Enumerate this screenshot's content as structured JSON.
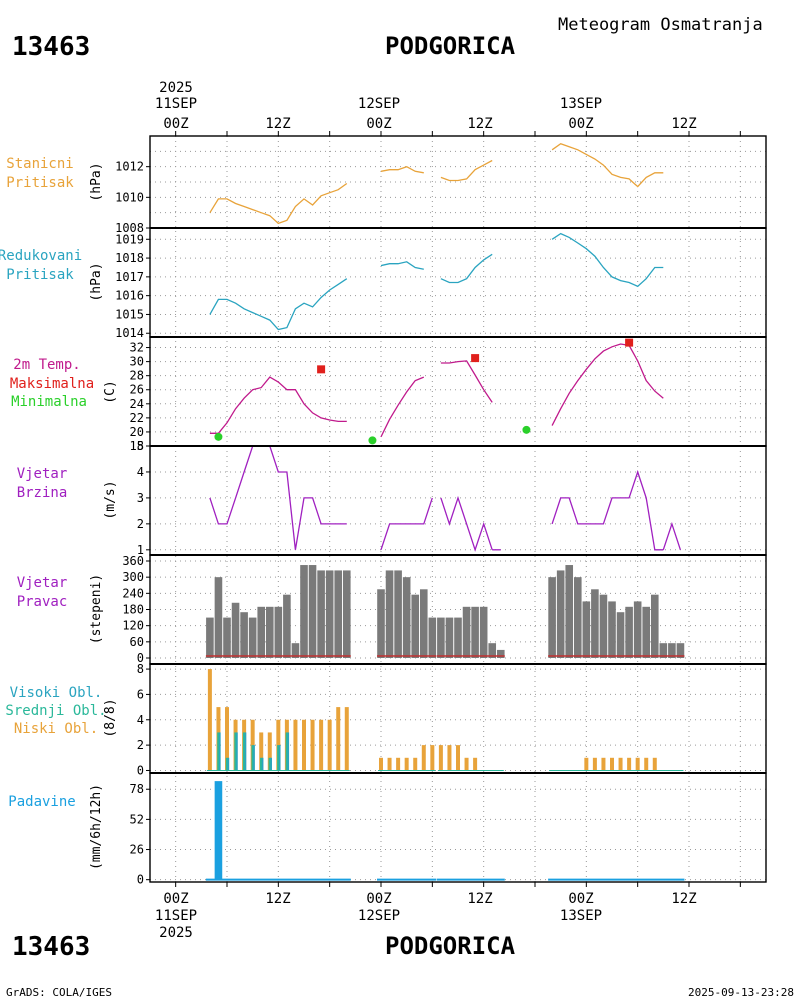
{
  "header": {
    "station_id": "13463",
    "station_name": "PODGORICA",
    "title": "Meteogram Osmatranja"
  },
  "footer": {
    "credit": "GrADS: COLA/IGES",
    "timestamp": "2025-09-13-23:28"
  },
  "time_axis": {
    "year": "2025",
    "tick_labels": [
      "00Z",
      "12Z",
      "00Z",
      "12Z",
      "00Z",
      "12Z"
    ],
    "date_labels": [
      "11SEP",
      "12SEP",
      "13SEP"
    ]
  },
  "colors": {
    "orange": "#e8a33a",
    "cyan": "#2aa4c0",
    "magenta": "#c01a8c",
    "red": "#e0201c",
    "green": "#2ad02a",
    "purple": "#a020c0",
    "gray": "#7a7a7a",
    "teal": "#2ab89a",
    "blue": "#1aa0e0"
  },
  "panels": [
    {
      "id": "station_pressure",
      "labels": [
        "Stanicni",
        "Pritisak"
      ],
      "unit": "(hPa)"
    },
    {
      "id": "reduced_pressure",
      "labels": [
        "Redukovani",
        "Pritisak"
      ],
      "unit": "(hPa)"
    },
    {
      "id": "temperature",
      "labels": [
        "2m Temp.",
        "Maksimalna",
        "Minimalna"
      ],
      "unit": "(C)"
    },
    {
      "id": "wind_speed",
      "labels": [
        "Vjetar",
        "Brzina"
      ],
      "unit": "(m/s)"
    },
    {
      "id": "wind_direction",
      "labels": [
        "Vjetar",
        "Pravac"
      ],
      "unit": "(stepeni)"
    },
    {
      "id": "clouds",
      "labels": [
        "Visoki Obl.",
        "Srednji Obl.",
        "Niski Obl."
      ],
      "unit": "(8/8)"
    },
    {
      "id": "precipitation",
      "labels": [
        "Padavine"
      ],
      "unit": "(mm/6h/12h)"
    }
  ],
  "chart_data": {
    "type": "line",
    "x_unit": "hours since 2025-09-11 00Z",
    "xlim": [
      -3,
      69
    ],
    "station_pressure": {
      "ylim": [
        1008,
        1014
      ],
      "yticks": [
        1008,
        1010,
        1012
      ],
      "y_gridlines": [
        1009,
        1011,
        1013
      ],
      "segments": [
        {
          "x": [
            4,
            5,
            6,
            7,
            8,
            9,
            10,
            11,
            12,
            13,
            14,
            15,
            16,
            17,
            18,
            19,
            20
          ],
          "y": [
            1009.0,
            1009.9,
            1009.9,
            1009.6,
            1009.4,
            1009.2,
            1009.0,
            1008.8,
            1008.3,
            1008.5,
            1009.4,
            1009.9,
            1009.5,
            1010.1,
            1010.3,
            1010.5,
            1010.9
          ]
        },
        {
          "x": [
            24,
            25,
            26,
            27,
            28,
            29
          ],
          "y": [
            1011.7,
            1011.8,
            1011.8,
            1012.0,
            1011.7,
            1011.6
          ]
        },
        {
          "x": [
            31,
            32,
            33,
            34,
            35,
            36,
            37
          ],
          "y": [
            1011.3,
            1011.1,
            1011.1,
            1011.2,
            1011.8,
            1012.1,
            1012.4
          ]
        },
        {
          "x": [
            44,
            45,
            46,
            47,
            48,
            49,
            50,
            51,
            52,
            53,
            54,
            55,
            56,
            57
          ],
          "y": [
            1013.1,
            1013.5,
            1013.3,
            1013.1,
            1012.8,
            1012.5,
            1012.1,
            1011.5,
            1011.3,
            1011.2,
            1010.7,
            1011.3,
            1011.6,
            1011.6
          ]
        }
      ]
    },
    "reduced_pressure": {
      "ylim": [
        1013.8,
        1019.6
      ],
      "yticks": [
        1014,
        1015,
        1016,
        1017,
        1018,
        1019
      ],
      "segments": [
        {
          "x": [
            4,
            5,
            6,
            7,
            8,
            9,
            10,
            11,
            12,
            13,
            14,
            15,
            16,
            17,
            18,
            19,
            20
          ],
          "y": [
            1015.0,
            1015.8,
            1015.8,
            1015.6,
            1015.3,
            1015.1,
            1014.9,
            1014.7,
            1014.2,
            1014.3,
            1015.3,
            1015.6,
            1015.4,
            1015.9,
            1016.3,
            1016.6,
            1016.9
          ]
        },
        {
          "x": [
            24,
            25,
            26,
            27,
            28,
            29
          ],
          "y": [
            1017.6,
            1017.7,
            1017.7,
            1017.8,
            1017.5,
            1017.4
          ]
        },
        {
          "x": [
            31,
            32,
            33,
            34,
            35,
            36,
            37
          ],
          "y": [
            1016.9,
            1016.7,
            1016.7,
            1016.9,
            1017.5,
            1017.9,
            1018.2
          ]
        },
        {
          "x": [
            44,
            45,
            46,
            47,
            48,
            49,
            50,
            51,
            52,
            53,
            54,
            55,
            56,
            57
          ],
          "y": [
            1019.0,
            1019.3,
            1019.1,
            1018.8,
            1018.5,
            1018.1,
            1017.5,
            1017.0,
            1016.8,
            1016.7,
            1016.5,
            1016.9,
            1017.5,
            1017.5
          ]
        }
      ]
    },
    "temperature": {
      "ylim": [
        18,
        33.5
      ],
      "yticks": [
        18,
        20,
        22,
        24,
        26,
        28,
        30,
        32
      ],
      "segments": [
        {
          "x": [
            4,
            5,
            6,
            7,
            8,
            9,
            10,
            11,
            12,
            13,
            14,
            15,
            16,
            17,
            18,
            19,
            20
          ],
          "y": [
            19.8,
            19.8,
            21.3,
            23.3,
            24.8,
            26.0,
            26.3,
            27.8,
            27.1,
            26.0,
            26.0,
            24.0,
            22.7,
            22.0,
            21.7,
            21.5,
            21.5
          ]
        },
        {
          "x": [
            24,
            25,
            26,
            27,
            28,
            29
          ],
          "y": [
            19.3,
            21.8,
            23.8,
            25.7,
            27.3,
            27.8
          ]
        },
        {
          "x": [
            31,
            32,
            33,
            34,
            35,
            36,
            37
          ],
          "y": [
            29.8,
            29.8,
            30.0,
            30.1,
            28.1,
            26.0,
            24.2
          ]
        },
        {
          "x": [
            44,
            45,
            46,
            47,
            48,
            49,
            50,
            51,
            52,
            53,
            54,
            55,
            56,
            57
          ],
          "y": [
            20.9,
            23.3,
            25.5,
            27.3,
            28.9,
            30.4,
            31.5,
            32.1,
            32.5,
            32.3,
            30.1,
            27.3,
            25.8,
            24.8
          ]
        }
      ],
      "max_points": [
        {
          "x": 17,
          "y": 28.9
        },
        {
          "x": 35,
          "y": 30.5
        },
        {
          "x": 53,
          "y": 32.7
        }
      ],
      "min_points": [
        {
          "x": 5,
          "y": 19.3
        },
        {
          "x": 23,
          "y": 18.8
        },
        {
          "x": 41,
          "y": 20.3
        }
      ]
    },
    "wind_speed": {
      "ylim": [
        0.8,
        5
      ],
      "yticks": [
        1,
        2,
        3,
        4,
        5
      ],
      "segments": [
        {
          "x": [
            4,
            5,
            6,
            7,
            8,
            9,
            10,
            11,
            12,
            13,
            14,
            15,
            16,
            17,
            18,
            19,
            20
          ],
          "y": [
            3,
            2,
            2,
            3,
            4,
            5,
            5,
            5,
            4,
            4,
            1,
            3,
            3,
            2,
            2,
            2,
            2
          ]
        },
        {
          "x": [
            24,
            25,
            26,
            27,
            28,
            29,
            30
          ],
          "y": [
            1,
            2,
            2,
            2,
            2,
            2,
            3
          ]
        },
        {
          "x": [
            31,
            32,
            33,
            34,
            35,
            36,
            37
          ],
          "y": [
            3,
            2,
            3,
            2,
            1,
            2,
            1
          ]
        },
        {
          "x": [
            44,
            45,
            46,
            47,
            48,
            49,
            50,
            51,
            52,
            53,
            54,
            55,
            56,
            57
          ],
          "y": [
            2,
            3,
            3,
            2,
            2,
            2,
            2,
            3,
            3,
            3,
            4,
            3,
            1,
            1
          ]
        }
      ],
      "extra_segments": [
        {
          "x": [
            37,
            38
          ],
          "y": [
            1,
            1
          ]
        },
        {
          "x": [
            57,
            58,
            59
          ],
          "y": [
            1,
            2,
            1
          ]
        }
      ]
    },
    "wind_direction": {
      "ylim": [
        0,
        360
      ],
      "yticks": [
        0,
        60,
        120,
        180,
        240,
        300,
        360
      ],
      "bars": [
        {
          "x": 4,
          "y": 150
        },
        {
          "x": 5,
          "y": 300
        },
        {
          "x": 6,
          "y": 150
        },
        {
          "x": 7,
          "y": 205
        },
        {
          "x": 8,
          "y": 170
        },
        {
          "x": 9,
          "y": 150
        },
        {
          "x": 10,
          "y": 190
        },
        {
          "x": 11,
          "y": 190
        },
        {
          "x": 12,
          "y": 190
        },
        {
          "x": 13,
          "y": 235
        },
        {
          "x": 14,
          "y": 55
        },
        {
          "x": 15,
          "y": 345
        },
        {
          "x": 16,
          "y": 345
        },
        {
          "x": 17,
          "y": 325
        },
        {
          "x": 18,
          "y": 325
        },
        {
          "x": 19,
          "y": 325
        },
        {
          "x": 20,
          "y": 325
        },
        {
          "x": 24,
          "y": 255
        },
        {
          "x": 25,
          "y": 325
        },
        {
          "x": 26,
          "y": 325
        },
        {
          "x": 27,
          "y": 300
        },
        {
          "x": 28,
          "y": 235
        },
        {
          "x": 29,
          "y": 255
        },
        {
          "x": 30,
          "y": 150
        },
        {
          "x": 31,
          "y": 150
        },
        {
          "x": 32,
          "y": 150
        },
        {
          "x": 33,
          "y": 150
        },
        {
          "x": 34,
          "y": 190
        },
        {
          "x": 35,
          "y": 190
        },
        {
          "x": 36,
          "y": 190
        },
        {
          "x": 37,
          "y": 55
        },
        {
          "x": 38,
          "y": 30
        },
        {
          "x": 44,
          "y": 300
        },
        {
          "x": 45,
          "y": 325
        },
        {
          "x": 46,
          "y": 345
        },
        {
          "x": 47,
          "y": 300
        },
        {
          "x": 48,
          "y": 210
        },
        {
          "x": 49,
          "y": 255
        },
        {
          "x": 50,
          "y": 235
        },
        {
          "x": 51,
          "y": 210
        },
        {
          "x": 52,
          "y": 170
        },
        {
          "x": 53,
          "y": 190
        },
        {
          "x": 54,
          "y": 210
        },
        {
          "x": 55,
          "y": 190
        },
        {
          "x": 56,
          "y": 235
        },
        {
          "x": 57,
          "y": 55
        },
        {
          "x": 58,
          "y": 55
        },
        {
          "x": 59,
          "y": 55
        }
      ]
    },
    "clouds": {
      "ylim": [
        -0.2,
        8.4
      ],
      "yticks": [
        0,
        2,
        4,
        6,
        8
      ],
      "low": [
        {
          "x": 4,
          "y": 8
        },
        {
          "x": 5,
          "y": 5
        },
        {
          "x": 6,
          "y": 5
        },
        {
          "x": 7,
          "y": 4
        },
        {
          "x": 8,
          "y": 4
        },
        {
          "x": 9,
          "y": 4
        },
        {
          "x": 10,
          "y": 3
        },
        {
          "x": 11,
          "y": 3
        },
        {
          "x": 12,
          "y": 4
        },
        {
          "x": 13,
          "y": 4
        },
        {
          "x": 14,
          "y": 4
        },
        {
          "x": 15,
          "y": 4
        },
        {
          "x": 16,
          "y": 4
        },
        {
          "x": 17,
          "y": 4
        },
        {
          "x": 18,
          "y": 4
        },
        {
          "x": 19,
          "y": 5
        },
        {
          "x": 20,
          "y": 5
        },
        {
          "x": 24,
          "y": 1
        },
        {
          "x": 25,
          "y": 1
        },
        {
          "x": 26,
          "y": 1
        },
        {
          "x": 27,
          "y": 1
        },
        {
          "x": 28,
          "y": 1
        },
        {
          "x": 29,
          "y": 2
        },
        {
          "x": 30,
          "y": 2
        },
        {
          "x": 31,
          "y": 2
        },
        {
          "x": 32,
          "y": 2
        },
        {
          "x": 33,
          "y": 2
        },
        {
          "x": 34,
          "y": 1
        },
        {
          "x": 35,
          "y": 1
        },
        {
          "x": 48,
          "y": 1
        },
        {
          "x": 49,
          "y": 1
        },
        {
          "x": 50,
          "y": 1
        },
        {
          "x": 51,
          "y": 1
        },
        {
          "x": 52,
          "y": 1
        },
        {
          "x": 53,
          "y": 1
        },
        {
          "x": 54,
          "y": 1
        },
        {
          "x": 55,
          "y": 1
        },
        {
          "x": 56,
          "y": 1
        }
      ],
      "middle": [
        {
          "x": 5,
          "y": 3
        },
        {
          "x": 6,
          "y": 1
        },
        {
          "x": 7,
          "y": 3
        },
        {
          "x": 8,
          "y": 3
        },
        {
          "x": 9,
          "y": 2
        },
        {
          "x": 10,
          "y": 1
        },
        {
          "x": 11,
          "y": 1
        },
        {
          "x": 12,
          "y": 2
        },
        {
          "x": 13,
          "y": 3
        }
      ],
      "high": [
        {
          "x": 5,
          "y": 3
        },
        {
          "x": 6,
          "y": 1
        },
        {
          "x": 7,
          "y": 3
        },
        {
          "x": 8,
          "y": 3
        },
        {
          "x": 9,
          "y": 2
        },
        {
          "x": 10,
          "y": 1
        },
        {
          "x": 11,
          "y": 1
        },
        {
          "x": 12,
          "y": 2
        },
        {
          "x": 13,
          "y": 3
        }
      ]
    },
    "precipitation": {
      "ylim": [
        -2,
        92
      ],
      "yticks": [
        0,
        26,
        52,
        78
      ],
      "bars": [
        {
          "x": 5,
          "y": 85
        }
      ],
      "baseline_ranges": [
        [
          4,
          20
        ],
        [
          24,
          30
        ],
        [
          31,
          38
        ],
        [
          44,
          59
        ]
      ]
    }
  }
}
